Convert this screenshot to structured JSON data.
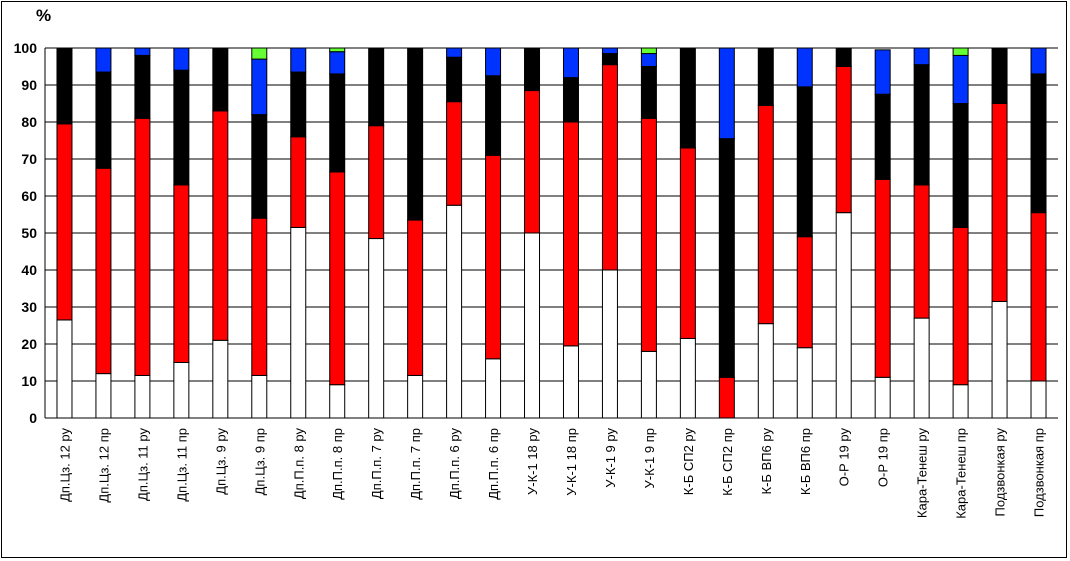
{
  "chart_data": {
    "type": "bar",
    "stacked": true,
    "ylabel": "%",
    "ylim": [
      0,
      100
    ],
    "yticks": [
      0,
      10,
      20,
      30,
      40,
      50,
      60,
      70,
      80,
      90,
      100
    ],
    "categories": [
      "Дп.Цз. 12 ру",
      "Дп.Цз. 12 пр",
      "Дп.Цз. 11 ру",
      "Дп.Цз. 11 пр",
      "Дп.Цз. 9 ру",
      "Дп.Цз. 9 пр",
      "Дп.П.п. 8 ру",
      "Дп.П.п. 8 пр",
      "Дп.П.п. 7 ру",
      "Дп.П.п. 7 пр",
      "Дп.П.п. 6 ру",
      "Дп.П.п. 6 пр",
      "У-К-1 18 ру",
      "У-К-1 18 пр",
      "У-К-1 9 ру",
      "У-К-1 9 пр",
      "К-Б СП2 ру",
      "К-Б СП2 пр",
      "К-Б ВП6 ру",
      "К-Б ВП6 пр",
      "О-Р 19 ру",
      "О-Р 19 пр",
      "Кара-Тенеш ру",
      "Кара-Тенеш пр",
      "Подзвонкая ру",
      "Подзвонкая пр"
    ],
    "series": [
      {
        "name": "white",
        "color": "#ffffff",
        "values": [
          26.5,
          12,
          11.5,
          15,
          21,
          11.5,
          51.5,
          9,
          48.5,
          11.5,
          57.5,
          16,
          50,
          19.5,
          40,
          18,
          21.5,
          0,
          25.5,
          19,
          55.5,
          11,
          27,
          9,
          31.5,
          10
        ]
      },
      {
        "name": "red",
        "color": "#ff0000",
        "values": [
          53,
          55.5,
          69.5,
          48,
          62,
          42.5,
          24.5,
          57.5,
          30.5,
          42,
          28,
          55,
          38.5,
          60.5,
          55.5,
          63,
          51.5,
          11,
          59,
          30,
          39.5,
          53.5,
          36,
          42.5,
          53.5,
          45.5
        ]
      },
      {
        "name": "black",
        "color": "#000000",
        "values": [
          20.5,
          26,
          17,
          31,
          17,
          28,
          17.5,
          26.5,
          21,
          46.5,
          12,
          21.5,
          11.5,
          12,
          3,
          14,
          27,
          64.5,
          15.5,
          40.5,
          5,
          23,
          32.5,
          33.5,
          15,
          37.5
        ]
      },
      {
        "name": "blue",
        "color": "#0033ff",
        "values": [
          0,
          6.5,
          2,
          6,
          0,
          15,
          6.5,
          6,
          0,
          0,
          2.5,
          7.5,
          0,
          8,
          1.5,
          3.5,
          0,
          24.5,
          0,
          10.5,
          0,
          12,
          4.5,
          13,
          0,
          7
        ]
      },
      {
        "name": "green",
        "color": "#66ff33",
        "values": [
          0,
          0,
          0,
          0,
          0,
          3,
          0,
          1,
          0,
          0,
          0,
          0,
          0,
          0,
          0,
          1.5,
          0,
          0,
          0,
          0,
          0,
          0,
          0,
          2,
          0,
          0
        ]
      }
    ]
  }
}
